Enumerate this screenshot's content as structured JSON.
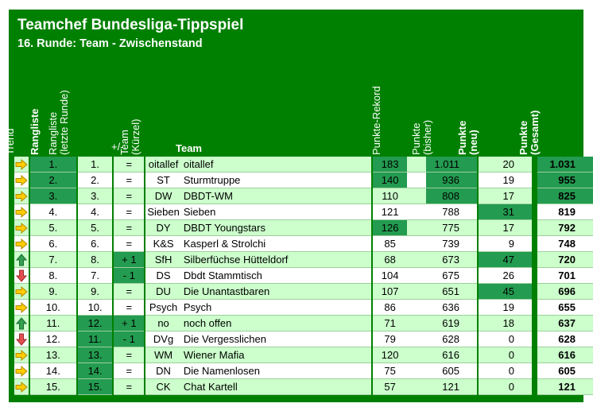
{
  "title": "Teamchef Bundesliga-Tippspiel",
  "subtitle": "16. Runde: Team - Zwischenstand",
  "headers": {
    "trend": "Trend",
    "rank": "Rangliste",
    "last_rank_line1": "Rangliste",
    "last_rank_line2": "(letzte Runde)",
    "change": "+/-",
    "short_line1": "Team",
    "short_line2": "(Kürzel)",
    "team": "Team",
    "record": "Punkte-Rekord",
    "prev_line1": "Punkte",
    "prev_line2": "(bisher)",
    "new_line1": "Punkte",
    "new_line2": "(neu)",
    "total_line1": "Punkte",
    "total_line2": "(Gesamt)"
  },
  "colors": {
    "background": "#008000",
    "row_light": "#ccffcc",
    "row_white": "#ffffff",
    "highlight": "#239b50",
    "arrow_same": "#ffcc00",
    "arrow_up": "#33a050",
    "arrow_down": "#e05050"
  },
  "rows": [
    {
      "trend": "right-arrow-icon",
      "rank": "1.",
      "last": "1.",
      "change": "=",
      "short": "oitallef",
      "team": "oitallef",
      "record": "183",
      "prev": "1.011",
      "new": "20",
      "total": "1.031"
    },
    {
      "trend": "right-arrow-icon",
      "rank": "2.",
      "last": "2.",
      "change": "=",
      "short": "ST",
      "team": "Sturmtruppe",
      "record": "140",
      "prev": "936",
      "new": "19",
      "total": "955"
    },
    {
      "trend": "right-arrow-icon",
      "rank": "3.",
      "last": "3.",
      "change": "=",
      "short": "DW",
      "team": "DBDT-WM",
      "record": "110",
      "prev": "808",
      "new": "17",
      "total": "825"
    },
    {
      "trend": "right-arrow-icon",
      "rank": "4.",
      "last": "4.",
      "change": "=",
      "short": "Sieben",
      "team": "Sieben",
      "record": "121",
      "prev": "788",
      "new": "31",
      "total": "819"
    },
    {
      "trend": "right-arrow-icon",
      "rank": "5.",
      "last": "5.",
      "change": "=",
      "short": "DY",
      "team": "DBDT Youngstars",
      "record": "126",
      "prev": "775",
      "new": "17",
      "total": "792"
    },
    {
      "trend": "right-arrow-icon",
      "rank": "6.",
      "last": "6.",
      "change": "=",
      "short": "K&S",
      "team": "Kasperl & Strolchi",
      "record": "85",
      "prev": "739",
      "new": "9",
      "total": "748"
    },
    {
      "trend": "up-arrow-icon",
      "rank": "7.",
      "last": "8.",
      "change": "+ 1",
      "short": "SfH",
      "team": "Silberfüchse Hütteldorf",
      "record": "68",
      "prev": "673",
      "new": "47",
      "total": "720"
    },
    {
      "trend": "down-arrow-icon",
      "rank": "8.",
      "last": "7.",
      "change": "- 1",
      "short": "DS",
      "team": "Dbdt Stammtisch",
      "record": "104",
      "prev": "675",
      "new": "26",
      "total": "701"
    },
    {
      "trend": "right-arrow-icon",
      "rank": "9.",
      "last": "9.",
      "change": "=",
      "short": "DU",
      "team": "Die Unantastbaren",
      "record": "107",
      "prev": "651",
      "new": "45",
      "total": "696"
    },
    {
      "trend": "right-arrow-icon",
      "rank": "10.",
      "last": "10.",
      "change": "=",
      "short": "Psych",
      "team": "Psych",
      "record": "86",
      "prev": "636",
      "new": "19",
      "total": "655"
    },
    {
      "trend": "up-arrow-icon",
      "rank": "11.",
      "last": "12.",
      "change": "+ 1",
      "short": "no",
      "team": "noch offen",
      "record": "71",
      "prev": "619",
      "new": "18",
      "total": "637"
    },
    {
      "trend": "down-arrow-icon",
      "rank": "12.",
      "last": "11.",
      "change": "- 1",
      "short": "DVg",
      "team": "Die Vergesslichen",
      "record": "79",
      "prev": "628",
      "new": "0",
      "total": "628"
    },
    {
      "trend": "right-arrow-icon",
      "rank": "13.",
      "last": "13.",
      "change": "=",
      "short": "WM",
      "team": "Wiener Mafia",
      "record": "120",
      "prev": "616",
      "new": "0",
      "total": "616"
    },
    {
      "trend": "right-arrow-icon",
      "rank": "14.",
      "last": "14.",
      "change": "=",
      "short": "DN",
      "team": "Die Namenlosen",
      "record": "75",
      "prev": "605",
      "new": "0",
      "total": "605"
    },
    {
      "trend": "right-arrow-icon",
      "rank": "15.",
      "last": "15.",
      "change": "=",
      "short": "CK",
      "team": "Chat Kartell",
      "record": "57",
      "prev": "121",
      "new": "0",
      "total": "121"
    }
  ],
  "highlights": {
    "rank": [
      0,
      1,
      2
    ],
    "last": [
      10,
      11,
      12,
      13,
      14
    ],
    "change": [
      6,
      7,
      10,
      11
    ],
    "record": [
      0,
      1,
      4
    ],
    "prev": [
      0,
      1,
      2
    ],
    "new": [
      3,
      6,
      8
    ],
    "total": [
      0,
      1,
      2
    ]
  }
}
